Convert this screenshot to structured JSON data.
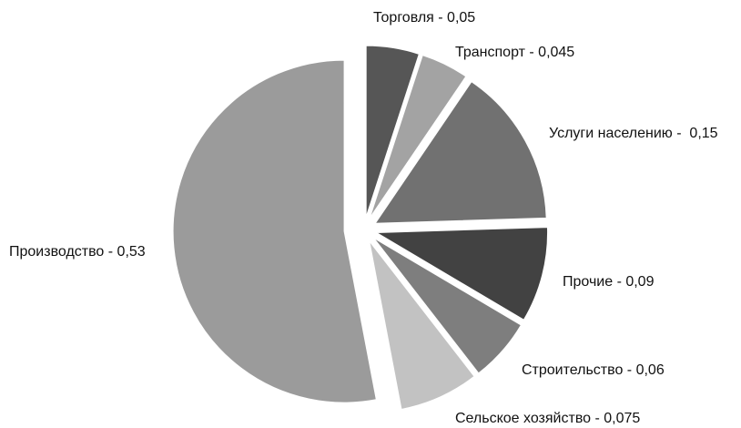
{
  "chart_data": {
    "type": "pie",
    "values": [
      0.05,
      0.045,
      0.15,
      0.09,
      0.06,
      0.075,
      0.53
    ],
    "value_labels": [
      "Торговля - 0,05",
      "Транспорт - 0,045",
      "Услуги населению -  0,15",
      "Прочие - 0,09",
      "Строительство - 0,06",
      "Сельское хозяйство - 0,075",
      "Производство - 0,53"
    ],
    "colors": [
      "#565656",
      "#a3a3a3",
      "#717171",
      "#424242",
      "#7e7e7e",
      "#c2c2c2",
      "#9b9b9b"
    ]
  }
}
